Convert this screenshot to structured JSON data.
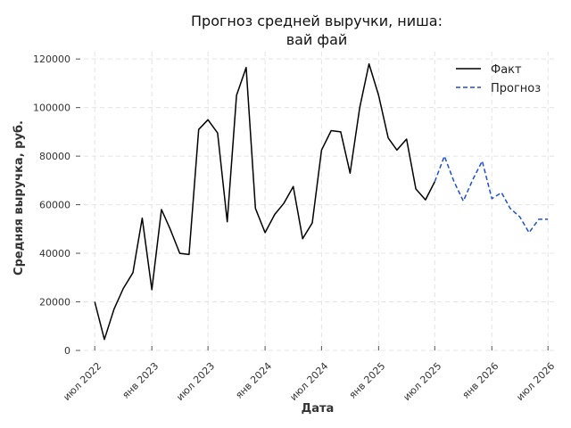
{
  "chart_data": {
    "type": "line",
    "title_line1": "Прогноз средней выручки, ниша:",
    "title_line2": "вай фай",
    "xlabel": "Дата",
    "ylabel": "Средняя выручка, руб.",
    "ylim": [
      0,
      123000
    ],
    "yticks": [
      0,
      20000,
      40000,
      60000,
      80000,
      100000,
      120000
    ],
    "ytick_labels": [
      "0",
      "20000",
      "40000",
      "60000",
      "80000",
      "100000",
      "120000"
    ],
    "xlim": [
      "2022-05-01",
      "2026-08-01"
    ],
    "xticks": [
      {
        "date": "2022-07-01",
        "label": "июл 2022"
      },
      {
        "date": "2023-01-01",
        "label": "янв 2023"
      },
      {
        "date": "2023-07-01",
        "label": "июл 2023"
      },
      {
        "date": "2024-01-01",
        "label": "янв 2024"
      },
      {
        "date": "2024-07-01",
        "label": "июл 2024"
      },
      {
        "date": "2025-01-01",
        "label": "янв 2025"
      },
      {
        "date": "2025-07-01",
        "label": "июл 2025"
      },
      {
        "date": "2026-01-01",
        "label": "янв 2026"
      },
      {
        "date": "2026-07-01",
        "label": "июл 2026"
      }
    ],
    "grid": true,
    "legend_position": "top-right",
    "series": [
      {
        "name": "Факт",
        "color": "#000000",
        "style": "solid",
        "x": [
          "2022-07-01",
          "2022-08-01",
          "2022-09-01",
          "2022-10-01",
          "2022-11-01",
          "2022-12-01",
          "2023-01-01",
          "2023-02-01",
          "2023-03-01",
          "2023-04-01",
          "2023-05-01",
          "2023-06-01",
          "2023-07-01",
          "2023-08-01",
          "2023-09-01",
          "2023-10-01",
          "2023-11-01",
          "2023-12-01",
          "2024-01-01",
          "2024-02-01",
          "2024-03-01",
          "2024-04-01",
          "2024-05-01",
          "2024-06-01",
          "2024-07-01",
          "2024-08-01",
          "2024-09-01",
          "2024-10-01",
          "2024-11-01",
          "2024-12-01",
          "2025-01-01",
          "2025-02-01",
          "2025-03-01",
          "2025-04-01",
          "2025-05-01",
          "2025-06-01",
          "2025-07-01"
        ],
        "y": [
          20000,
          4500,
          17000,
          25500,
          32000,
          54500,
          25000,
          58000,
          50000,
          40000,
          39500,
          91000,
          95000,
          89500,
          53000,
          105000,
          116500,
          58500,
          48500,
          56000,
          60500,
          67500,
          46000,
          52500,
          82500,
          90500,
          90000,
          73000,
          100000,
          118000,
          105000,
          87500,
          82500,
          87000,
          66500,
          62000,
          69500
        ]
      },
      {
        "name": "Прогноз",
        "color": "#1f4fd1",
        "style": "dashed",
        "x": [
          "2025-07-01",
          "2025-08-01",
          "2025-09-01",
          "2025-10-01",
          "2025-11-01",
          "2025-12-01",
          "2026-01-01",
          "2026-02-01",
          "2026-03-01",
          "2026-04-01",
          "2026-05-01",
          "2026-06-01",
          "2026-07-01"
        ],
        "y": [
          69500,
          80000,
          69500,
          61500,
          70500,
          78000,
          62500,
          65000,
          58500,
          55000,
          48500,
          54000,
          54000
        ]
      }
    ]
  }
}
